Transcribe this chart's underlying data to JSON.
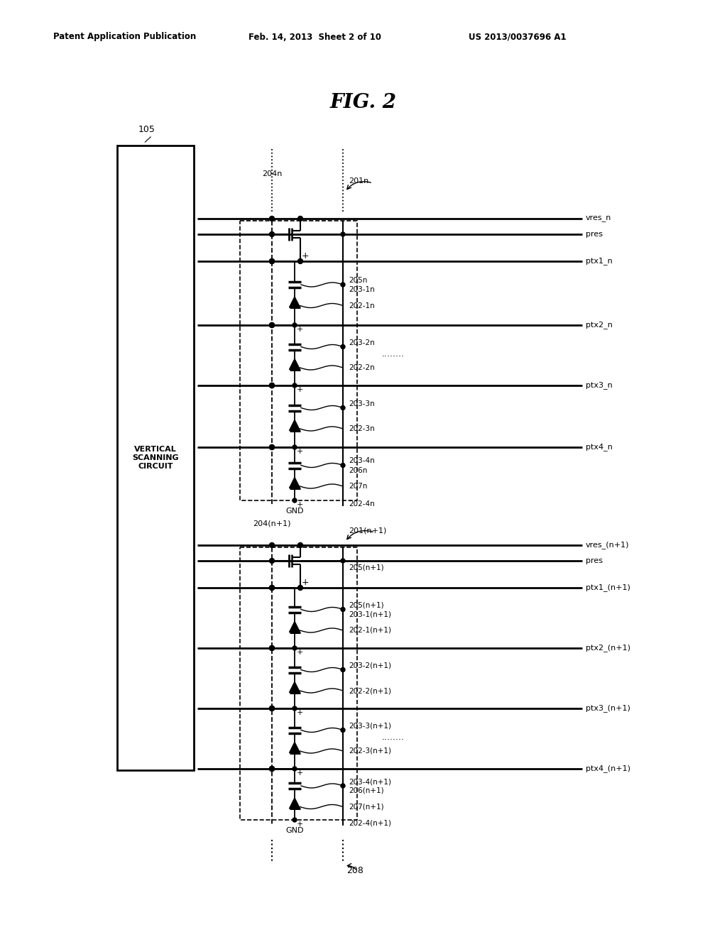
{
  "bg": "#ffffff",
  "header_left": "Patent Application Publication",
  "header_mid": "Feb. 14, 2013  Sheet 2 of 10",
  "header_right": "US 2013/0037696 A1",
  "fig_title": "FIG. 2",
  "vsc_label": "VERTICAL\nSCANNING\nCIRCUIT",
  "label_105": "105",
  "label_204n": "204n",
  "label_201n": "201n",
  "label_204n1": "204(n+1)",
  "label_201n1": "201(n+1)",
  "label_208": "208",
  "label_gnd": "GND",
  "rows_n": [
    "vres_n",
    "pres",
    "ptx1_n",
    "ptx2_n",
    "ptx3_n",
    "ptx4_n"
  ],
  "rows_n1": [
    "vres_(n+1)",
    "pres",
    "ptx1_(n+1)",
    "ptx2_(n+1)",
    "ptx3_(n+1)",
    "ptx4_(n+1)"
  ],
  "subcell_n_labels": [
    [
      "205n",
      "203-1n",
      "202-1n",
      false
    ],
    [
      "203-2n",
      "",
      "202-2n",
      true
    ],
    [
      "203-3n",
      "",
      "202-3n",
      false
    ],
    [
      "203-4n",
      "206n",
      "207n",
      false
    ]
  ],
  "subcell_n1_labels": [
    [
      "205(n+1)",
      "203-1(n+1)",
      "202-1(n+1)",
      false
    ],
    [
      "203-2(n+1)",
      "",
      "202-2(n+1)",
      false
    ],
    [
      "203-3(n+1)",
      "",
      "202-3(n+1)",
      true
    ],
    [
      "203-4(n+1)",
      "206(n+1)",
      "207(n+1)",
      false
    ]
  ],
  "gnd_label_n": "202-4n",
  "gnd_label_n1": "202-4(n+1)"
}
